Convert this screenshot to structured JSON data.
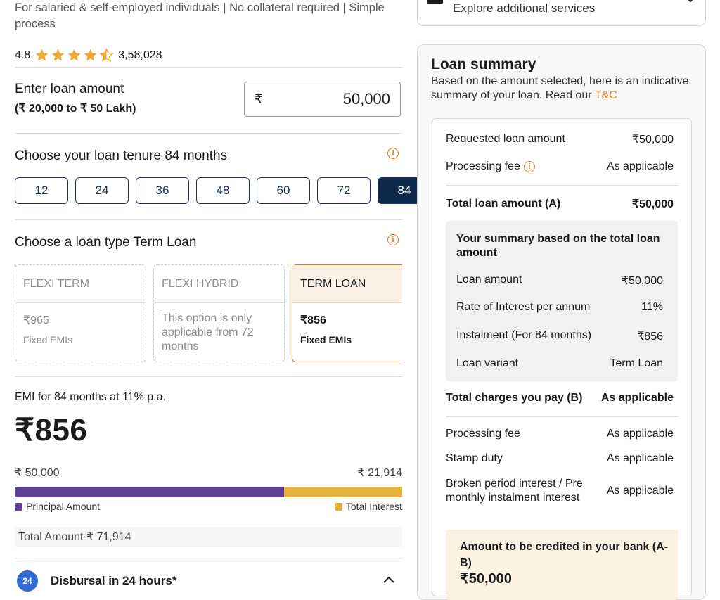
{
  "tagline": "For salaried & self-employed individuals | No collateral required | Simple process",
  "rating": {
    "score": "4.8",
    "stars": 4.5,
    "count": "3,58,028"
  },
  "loan_amount": {
    "label": "Enter loan amount",
    "range": "(₹ 20,000 to ₹ 50 Lakh)",
    "currency": "₹",
    "value": "50,000"
  },
  "tenure": {
    "title": "Choose your loan tenure 84 months",
    "options": [
      "12",
      "24",
      "36",
      "48",
      "60",
      "72",
      "84"
    ],
    "selected": "84"
  },
  "loan_type": {
    "title": "Choose a loan type Term Loan",
    "options": [
      {
        "name": "FLEXI TERM",
        "value": "₹965",
        "note": "Fixed EMIs"
      },
      {
        "name": "FLEXI HYBRID",
        "value": "",
        "note": "This option is only applicable from 72 months"
      },
      {
        "name": "TERM LOAN",
        "value": "₹856",
        "note": "Fixed EMIs"
      }
    ]
  },
  "emi": {
    "label": "EMI for 84 months at 11% p.a.",
    "value": "₹856",
    "principal": "₹ 50,000",
    "interest": "₹ 21,914",
    "principal_fraction": 0.695,
    "principal_label": "Principal Amount",
    "interest_label": "Total Interest",
    "total": "Total Amount ₹ 71,914",
    "colors": {
      "principal": "#5f3f93",
      "interest": "#e1b23c"
    }
  },
  "disbursal": {
    "label": "Disbursal in 24 hours*",
    "badge": "24"
  },
  "services": {
    "label": "Explore additional services"
  },
  "summary": {
    "title": "Loan summary",
    "desc": "Based on the amount selected, here is an indicative summary of your loan. Read our ",
    "tc_link": "T&C",
    "requested_label": "Requested loan amount",
    "requested_value": "₹50,000",
    "processing_label": "Processing fee",
    "processing_value": "As applicable",
    "total_a_label": "Total loan amount (A)",
    "total_a_value": "₹50,000",
    "box_title": "Your summary based on the total loan amount",
    "box_rows": [
      {
        "label": "Loan amount",
        "value": "₹50,000"
      },
      {
        "label": "Rate of Interest per annum",
        "value": "11%"
      },
      {
        "label": "Instalment (For 84 months)",
        "value": "₹856"
      },
      {
        "label": "Loan variant",
        "value": "Term Loan"
      }
    ],
    "total_b_label": "Total charges you pay (B)",
    "total_b_value": "As applicable",
    "charges": [
      {
        "label": "Processing fee",
        "value": "As applicable"
      },
      {
        "label": "Stamp duty",
        "value": "As applicable"
      },
      {
        "label": "Broken period interest / Pre monthly instalment interest",
        "value": "As applicable"
      }
    ],
    "credit_label": "Amount to be credited in your bank (A-B)",
    "credit_value": "₹50,000"
  },
  "accent": "#e8751a"
}
